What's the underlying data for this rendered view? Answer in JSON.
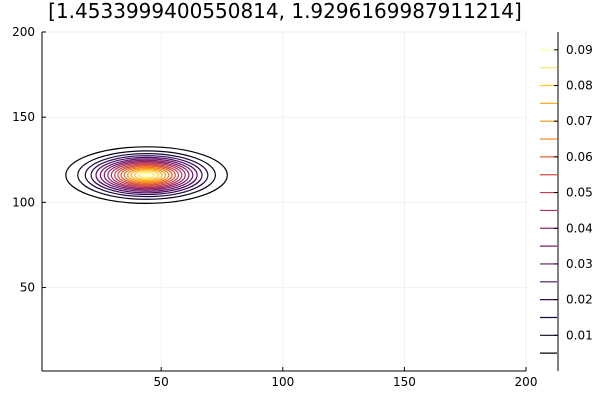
{
  "chart_data": {
    "type": "contour",
    "title": "[1.4533999400550814, 1.9296169987911214]",
    "xlabel": "",
    "ylabel": "",
    "xlim": [
      1,
      200
    ],
    "ylim": [
      1,
      200
    ],
    "x_ticks": [
      50,
      100,
      150,
      200
    ],
    "y_ticks": [
      50,
      100,
      150,
      200
    ],
    "grid": true,
    "colorbar": {
      "position": "right",
      "colormap": "inferno",
      "range": [
        0.0,
        0.095
      ],
      "tick_values": [
        0.01,
        0.02,
        0.03,
        0.04,
        0.05,
        0.06,
        0.07,
        0.08,
        0.09
      ],
      "tick_labels": [
        "0.01",
        "0.02",
        "0.03",
        "0.04",
        "0.05",
        "0.06",
        "0.07",
        "0.08",
        "0.09"
      ]
    },
    "peak": {
      "x": 44,
      "y": 116,
      "value": 0.095
    },
    "contour_levels": [
      0.005,
      0.01,
      0.015,
      0.02,
      0.025,
      0.03,
      0.035,
      0.04,
      0.045,
      0.05,
      0.055,
      0.06,
      0.065,
      0.07,
      0.075,
      0.08,
      0.085,
      0.09
    ],
    "contours": [
      {
        "level": 0.005,
        "cx": 44,
        "cy": 116,
        "rx": 33.2,
        "ry": 16.6
      },
      {
        "level": 0.01,
        "cx": 44,
        "cy": 116,
        "rx": 28.3,
        "ry": 14.2
      },
      {
        "level": 0.015,
        "cx": 44,
        "cy": 116,
        "rx": 25.2,
        "ry": 12.6
      },
      {
        "level": 0.02,
        "cx": 44,
        "cy": 116,
        "rx": 22.8,
        "ry": 11.4
      },
      {
        "level": 0.025,
        "cx": 44,
        "cy": 116,
        "rx": 20.8,
        "ry": 10.4
      },
      {
        "level": 0.03,
        "cx": 44,
        "cy": 116,
        "rx": 19.0,
        "ry": 9.5
      },
      {
        "level": 0.035,
        "cx": 44,
        "cy": 116,
        "rx": 17.4,
        "ry": 8.7
      },
      {
        "level": 0.04,
        "cx": 44,
        "cy": 116,
        "rx": 15.9,
        "ry": 8.0
      },
      {
        "level": 0.045,
        "cx": 44,
        "cy": 116,
        "rx": 14.5,
        "ry": 7.3
      },
      {
        "level": 0.05,
        "cx": 44,
        "cy": 116,
        "rx": 13.1,
        "ry": 6.6
      },
      {
        "level": 0.055,
        "cx": 44,
        "cy": 116,
        "rx": 11.8,
        "ry": 5.9
      },
      {
        "level": 0.06,
        "cx": 44,
        "cy": 116,
        "rx": 10.5,
        "ry": 5.3
      },
      {
        "level": 0.065,
        "cx": 44,
        "cy": 116,
        "rx": 9.2,
        "ry": 4.6
      },
      {
        "level": 0.07,
        "cx": 44,
        "cy": 116,
        "rx": 7.8,
        "ry": 3.9
      },
      {
        "level": 0.075,
        "cx": 44,
        "cy": 116,
        "rx": 6.4,
        "ry": 3.2
      },
      {
        "level": 0.08,
        "cx": 44,
        "cy": 116,
        "rx": 4.9,
        "ry": 2.5
      },
      {
        "level": 0.085,
        "cx": 44,
        "cy": 116,
        "rx": 3.2,
        "ry": 1.6
      },
      {
        "level": 0.09,
        "cx": 44,
        "cy": 116,
        "rx": 1.6,
        "ry": 0.8
      }
    ]
  }
}
